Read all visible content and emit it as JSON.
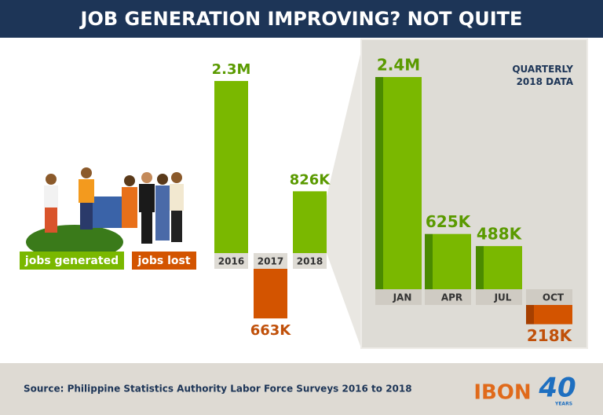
{
  "chart_data": [
    {
      "type": "bar",
      "title": "JOB GENERATION IMPROVING? NOT QUITE",
      "categories": [
        "2016",
        "2017",
        "2018"
      ],
      "series": [
        {
          "name": "jobs generated",
          "color": "#7ab800",
          "values": [
            2300000,
            null,
            826000
          ],
          "value_labels": [
            "2.3M",
            null,
            "826K"
          ]
        },
        {
          "name": "jobs lost",
          "color": "#d35400",
          "values": [
            null,
            663000,
            null
          ],
          "value_labels": [
            null,
            "663K",
            null
          ]
        }
      ],
      "source": "Source: Philippine Statistics Authority Labor Force Surveys 2016 to 2018"
    },
    {
      "type": "bar",
      "title": "QUARTERLY 2018 DATA",
      "categories": [
        "JAN",
        "APR",
        "JUL",
        "OCT"
      ],
      "series": [
        {
          "color": "#7ab800",
          "values": [
            2400000,
            625000,
            488000,
            null
          ],
          "value_labels": [
            "2.4M",
            "625K",
            "488K",
            null
          ]
        },
        {
          "color": "#d35400",
          "values": [
            null,
            null,
            null,
            218000
          ],
          "value_labels": [
            null,
            null,
            null,
            "218K"
          ]
        }
      ]
    }
  ],
  "logo": "IBON",
  "anniversary": "40",
  "years": "YEARS"
}
